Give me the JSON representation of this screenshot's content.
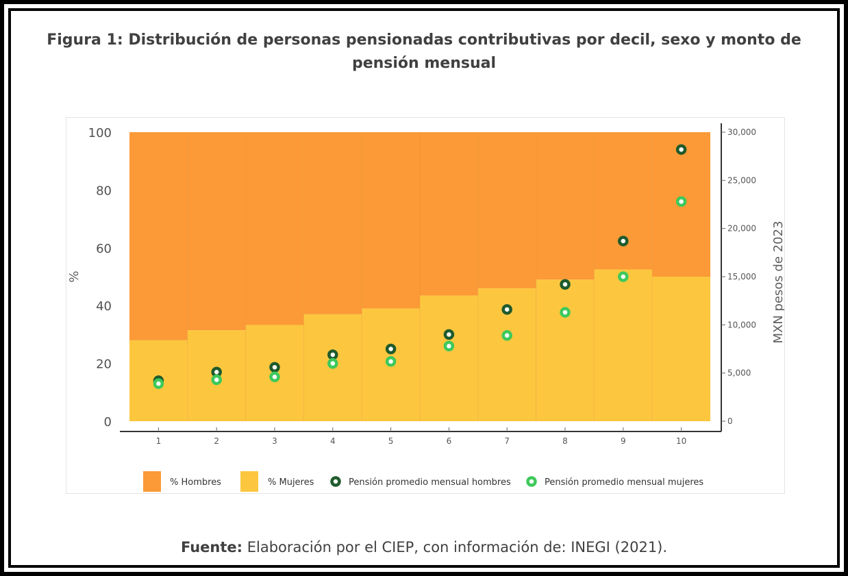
{
  "figure": {
    "title_line1": "Figura 1: Distribución de personas pensionadas contributivas por decil, sexo y monto de",
    "title_line2": "pensión mensual",
    "source_label": "Fuente:",
    "source_text": " Elaboración por el CIEP, con información de: INEGI (2021)."
  },
  "chart_data": {
    "type": "bar",
    "stacked": true,
    "categories": [
      "1",
      "2",
      "3",
      "4",
      "5",
      "6",
      "7",
      "8",
      "9",
      "10"
    ],
    "series": [
      {
        "name": "% Mujeres",
        "kind": "bar",
        "axis": "left",
        "color": "#fcc73f",
        "values": [
          28,
          31.5,
          33.3,
          37,
          39,
          43.5,
          46,
          49,
          52.5,
          50
        ]
      },
      {
        "name": "% Hombres",
        "kind": "bar",
        "axis": "left",
        "color": "#fb9a36",
        "values": [
          72,
          68.5,
          66.7,
          63,
          61,
          56.5,
          54,
          51,
          47.5,
          50
        ]
      },
      {
        "name": "Pensión promedio mensual hombres",
        "kind": "scatter",
        "axis": "right",
        "color": "#1f5b2c",
        "values": [
          4200,
          5100,
          5600,
          6900,
          7500,
          9000,
          11600,
          14200,
          18700,
          28200
        ]
      },
      {
        "name": "Pensión promedio mensual mujeres",
        "kind": "scatter",
        "axis": "right",
        "color": "#3ec95b",
        "values": [
          3900,
          4300,
          4600,
          6000,
          6200,
          7800,
          8900,
          11300,
          15000,
          22800
        ]
      }
    ],
    "legend_order": [
      "% Hombres",
      "% Mujeres",
      "Pensión promedio mensual hombres",
      "Pensión promedio mensual mujeres"
    ],
    "ylabel": "%",
    "ylim": [
      0,
      100
    ],
    "yticks": [
      "0",
      "20",
      "40",
      "60",
      "80",
      "100"
    ],
    "y2label": "MXN pesos de 2023",
    "y2lim": [
      0,
      30000
    ],
    "y2ticks": [
      "0",
      "5,000",
      "10,000",
      "15,000",
      "20,000",
      "25,000",
      "30,000"
    ],
    "xlabel": "",
    "legend_position": "bottom"
  }
}
